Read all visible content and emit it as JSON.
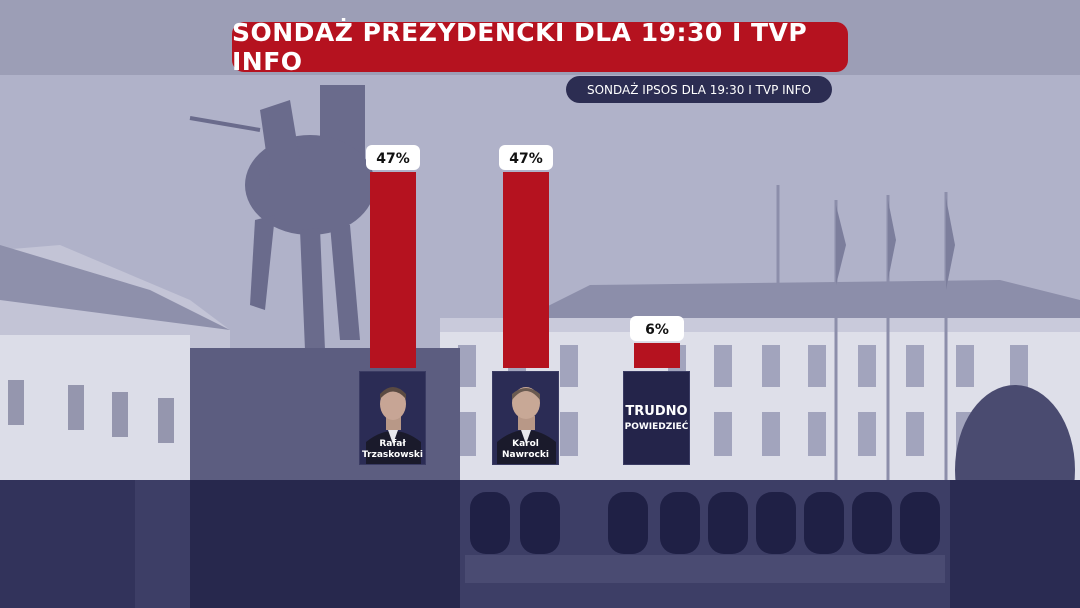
{
  "title": "SONDAŻ PREZYDENCKI DLA 19:30 I TVP INFO",
  "subtitle": "SONDAŻ IPSOS DLA 19:30 I TVP INFO",
  "colors": {
    "bar": "#b5121f",
    "panel": "#24244a",
    "label_bg": "#ffffff"
  },
  "chart_data": {
    "type": "bar",
    "categories": [
      "Rafał Trzaskowski",
      "Karol Nawrocki",
      "TRUDNO POWIEDZIEĆ"
    ],
    "values": [
      47,
      47,
      6
    ],
    "value_labels": [
      "47%",
      "47%",
      "6%"
    ],
    "candidates": [
      {
        "name_line1": "Rafał",
        "name_line2": "Trzaskowski"
      },
      {
        "name_line1": "Karol",
        "name_line2": "Nawrocki"
      },
      {
        "big": "TRUDNO",
        "small": "POWIEDZIEĆ"
      }
    ],
    "ylim": [
      0,
      47
    ],
    "xlabel": "",
    "ylabel": "",
    "grid": false
  }
}
